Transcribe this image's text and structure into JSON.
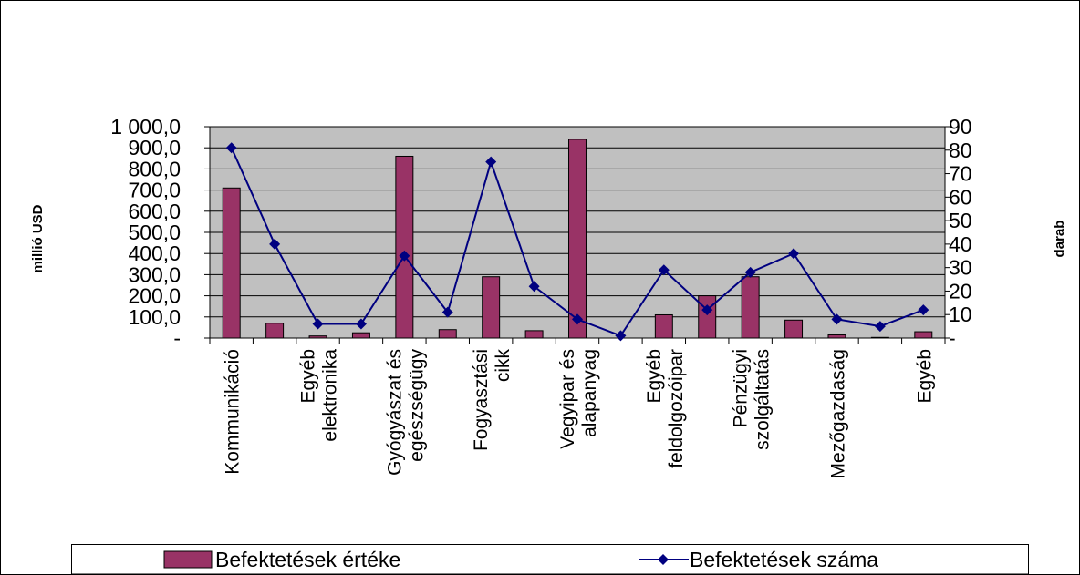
{
  "chart_data": {
    "type": "bar",
    "categories": [
      "Kommunikáció",
      null,
      "Egyéb\nelektronika",
      null,
      "Gyógyászat és\negészségügy",
      null,
      "Fogyasztási\ncikk",
      null,
      "Vegyipar és\nalapanyag",
      null,
      "Egyéb\nfeldolgozóipar",
      null,
      "Pénzügyi\nszolgáltatás",
      null,
      "Mezőgazdaság",
      null,
      "Egyéb"
    ],
    "ylabel": "millió USD",
    "y2label": "darab",
    "ylim": [
      0,
      1000
    ],
    "yticks": [
      {
        "value": 0,
        "label": "-"
      },
      {
        "value": 100,
        "label": "100,0"
      },
      {
        "value": 200,
        "label": "200,0"
      },
      {
        "value": 300,
        "label": "300,0"
      },
      {
        "value": 400,
        "label": "400,0"
      },
      {
        "value": 500,
        "label": "500,0"
      },
      {
        "value": 600,
        "label": "600,0"
      },
      {
        "value": 700,
        "label": "700,0"
      },
      {
        "value": 800,
        "label": "800,0"
      },
      {
        "value": 900,
        "label": "900,0"
      },
      {
        "value": 1000,
        "label": "1 000,0"
      }
    ],
    "y2lim": [
      0,
      90
    ],
    "y2ticks": [
      {
        "value": 0,
        "label": "-"
      },
      10,
      20,
      30,
      40,
      50,
      60,
      70,
      80,
      90
    ],
    "grid": true,
    "legend": "bottom",
    "series": [
      {
        "name": "Befektetések értéke",
        "type": "bar",
        "color": "#993366",
        "axis": "y",
        "values": [
          710,
          70,
          10,
          25,
          860,
          40,
          290,
          35,
          940,
          0,
          110,
          200,
          290,
          85,
          15,
          3,
          30
        ]
      },
      {
        "name": "Befektetések száma",
        "type": "line",
        "color": "#000080",
        "axis": "y2",
        "values": [
          81,
          40,
          6,
          6,
          35,
          11,
          75,
          22,
          8,
          1,
          29,
          12,
          28,
          36,
          8,
          5,
          12
        ]
      }
    ]
  }
}
